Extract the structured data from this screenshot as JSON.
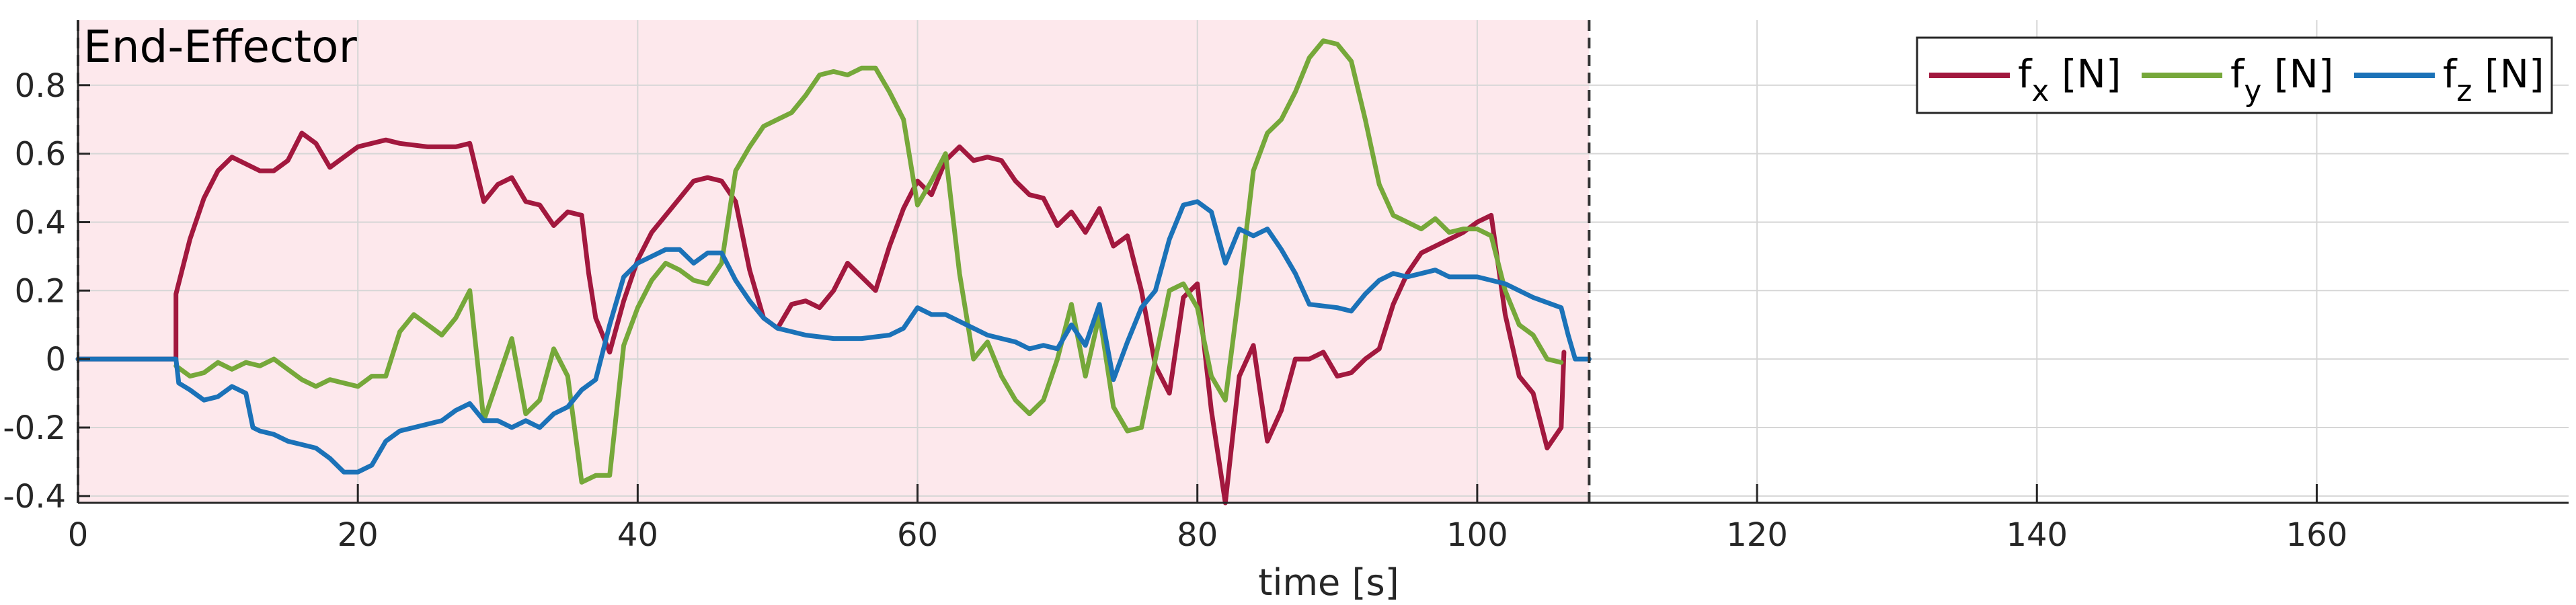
{
  "chart_data": {
    "type": "line",
    "title": "End-Effector",
    "xlabel": "time [s]",
    "ylabel": "",
    "xlim": [
      0,
      178
    ],
    "ylim": [
      -0.42,
      0.99
    ],
    "xticks": [
      0,
      20,
      40,
      60,
      80,
      100,
      120,
      140,
      160
    ],
    "yticks": [
      -0.4,
      -0.2,
      0,
      0.2,
      0.4,
      0.6,
      0.8
    ],
    "ytick_labels": [
      "-0.4",
      "-0.2",
      "0",
      "0.2",
      "0.4",
      "0.6",
      "0.8"
    ],
    "grid": true,
    "legend_position": "top-right",
    "shaded_region": {
      "x_start": 0,
      "x_end": 108,
      "color": "#fde8ec"
    },
    "vertical_markers": [
      0,
      108
    ],
    "series": [
      {
        "name": "f",
        "subscript": "x",
        "unit": "[N]",
        "color": "#a2183e",
        "points": [
          [
            0,
            0
          ],
          [
            7,
            0
          ],
          [
            7,
            0.19
          ],
          [
            8,
            0.35
          ],
          [
            9,
            0.47
          ],
          [
            10,
            0.55
          ],
          [
            11,
            0.59
          ],
          [
            12,
            0.57
          ],
          [
            13,
            0.55
          ],
          [
            14,
            0.55
          ],
          [
            15,
            0.58
          ],
          [
            16,
            0.66
          ],
          [
            17,
            0.63
          ],
          [
            18,
            0.56
          ],
          [
            19,
            0.59
          ],
          [
            20,
            0.62
          ],
          [
            22,
            0.64
          ],
          [
            23,
            0.63
          ],
          [
            25,
            0.62
          ],
          [
            27,
            0.62
          ],
          [
            28,
            0.63
          ],
          [
            29,
            0.46
          ],
          [
            30,
            0.51
          ],
          [
            31,
            0.53
          ],
          [
            32,
            0.46
          ],
          [
            33,
            0.45
          ],
          [
            34,
            0.39
          ],
          [
            35,
            0.43
          ],
          [
            36,
            0.42
          ],
          [
            36.5,
            0.25
          ],
          [
            37,
            0.12
          ],
          [
            38,
            0.02
          ],
          [
            39,
            0.17
          ],
          [
            40,
            0.29
          ],
          [
            41,
            0.37
          ],
          [
            42,
            0.42
          ],
          [
            43,
            0.47
          ],
          [
            44,
            0.52
          ],
          [
            45,
            0.53
          ],
          [
            46,
            0.52
          ],
          [
            47,
            0.46
          ],
          [
            48,
            0.26
          ],
          [
            49,
            0.12
          ],
          [
            50,
            0.09
          ],
          [
            51,
            0.16
          ],
          [
            52,
            0.17
          ],
          [
            53,
            0.15
          ],
          [
            54,
            0.2
          ],
          [
            55,
            0.28
          ],
          [
            56,
            0.24
          ],
          [
            57,
            0.2
          ],
          [
            58,
            0.33
          ],
          [
            59,
            0.44
          ],
          [
            60,
            0.52
          ],
          [
            61,
            0.48
          ],
          [
            62,
            0.58
          ],
          [
            63,
            0.62
          ],
          [
            64,
            0.58
          ],
          [
            65,
            0.59
          ],
          [
            66,
            0.58
          ],
          [
            67,
            0.52
          ],
          [
            68,
            0.48
          ],
          [
            69,
            0.47
          ],
          [
            70,
            0.39
          ],
          [
            71,
            0.43
          ],
          [
            72,
            0.37
          ],
          [
            73,
            0.44
          ],
          [
            74,
            0.33
          ],
          [
            75,
            0.36
          ],
          [
            76,
            0.2
          ],
          [
            77,
            -0.02
          ],
          [
            78,
            -0.1
          ],
          [
            79,
            0.18
          ],
          [
            80,
            0.22
          ],
          [
            81,
            -0.15
          ],
          [
            82,
            -0.42
          ],
          [
            83,
            -0.05
          ],
          [
            84,
            0.04
          ],
          [
            85,
            -0.24
          ],
          [
            86,
            -0.15
          ],
          [
            87,
            0.0
          ],
          [
            88,
            0.0
          ],
          [
            89,
            0.02
          ],
          [
            90,
            -0.05
          ],
          [
            91,
            -0.04
          ],
          [
            92,
            0.0
          ],
          [
            93,
            0.03
          ],
          [
            94,
            0.16
          ],
          [
            95,
            0.25
          ],
          [
            96,
            0.31
          ],
          [
            97,
            0.33
          ],
          [
            98,
            0.35
          ],
          [
            99,
            0.37
          ],
          [
            100,
            0.4
          ],
          [
            101,
            0.42
          ],
          [
            102,
            0.13
          ],
          [
            103,
            -0.05
          ],
          [
            104,
            -0.1
          ],
          [
            105,
            -0.26
          ],
          [
            106,
            -0.2
          ],
          [
            106.2,
            0.02
          ]
        ]
      },
      {
        "name": "f",
        "subscript": "y",
        "unit": "[N]",
        "color": "#76a83a",
        "points": [
          [
            7,
            -0.02
          ],
          [
            8,
            -0.05
          ],
          [
            9,
            -0.04
          ],
          [
            10,
            -0.01
          ],
          [
            11,
            -0.03
          ],
          [
            12,
            -0.01
          ],
          [
            13,
            -0.02
          ],
          [
            14,
            0.0
          ],
          [
            15,
            -0.03
          ],
          [
            16,
            -0.06
          ],
          [
            17,
            -0.08
          ],
          [
            18,
            -0.06
          ],
          [
            19,
            -0.07
          ],
          [
            20,
            -0.08
          ],
          [
            21,
            -0.05
          ],
          [
            22,
            -0.05
          ],
          [
            23,
            0.08
          ],
          [
            24,
            0.13
          ],
          [
            25,
            0.1
          ],
          [
            26,
            0.07
          ],
          [
            27,
            0.12
          ],
          [
            28,
            0.2
          ],
          [
            29,
            -0.18
          ],
          [
            30,
            -0.06
          ],
          [
            31,
            0.06
          ],
          [
            32,
            -0.16
          ],
          [
            33,
            -0.12
          ],
          [
            34,
            0.03
          ],
          [
            35,
            -0.05
          ],
          [
            36,
            -0.36
          ],
          [
            37,
            -0.34
          ],
          [
            38,
            -0.34
          ],
          [
            39,
            0.04
          ],
          [
            40,
            0.15
          ],
          [
            41,
            0.23
          ],
          [
            42,
            0.28
          ],
          [
            43,
            0.26
          ],
          [
            44,
            0.23
          ],
          [
            45,
            0.22
          ],
          [
            46,
            0.28
          ],
          [
            47,
            0.55
          ],
          [
            48,
            0.62
          ],
          [
            49,
            0.68
          ],
          [
            50,
            0.7
          ],
          [
            51,
            0.72
          ],
          [
            52,
            0.77
          ],
          [
            53,
            0.83
          ],
          [
            54,
            0.84
          ],
          [
            55,
            0.83
          ],
          [
            56,
            0.85
          ],
          [
            57,
            0.85
          ],
          [
            58,
            0.78
          ],
          [
            59,
            0.7
          ],
          [
            60,
            0.45
          ],
          [
            61,
            0.52
          ],
          [
            62,
            0.6
          ],
          [
            63,
            0.25
          ],
          [
            64,
            0.0
          ],
          [
            65,
            0.05
          ],
          [
            66,
            -0.05
          ],
          [
            67,
            -0.12
          ],
          [
            68,
            -0.16
          ],
          [
            69,
            -0.12
          ],
          [
            70,
            0.0
          ],
          [
            71,
            0.16
          ],
          [
            72,
            -0.05
          ],
          [
            73,
            0.13
          ],
          [
            74,
            -0.14
          ],
          [
            75,
            -0.21
          ],
          [
            76,
            -0.2
          ],
          [
            77,
            0.0
          ],
          [
            78,
            0.2
          ],
          [
            79,
            0.22
          ],
          [
            80,
            0.15
          ],
          [
            81,
            -0.05
          ],
          [
            82,
            -0.12
          ],
          [
            83,
            0.2
          ],
          [
            84,
            0.55
          ],
          [
            85,
            0.66
          ],
          [
            86,
            0.7
          ],
          [
            87,
            0.78
          ],
          [
            88,
            0.88
          ],
          [
            89,
            0.93
          ],
          [
            90,
            0.92
          ],
          [
            91,
            0.87
          ],
          [
            92,
            0.7
          ],
          [
            93,
            0.51
          ],
          [
            94,
            0.42
          ],
          [
            95,
            0.4
          ],
          [
            96,
            0.38
          ],
          [
            97,
            0.41
          ],
          [
            98,
            0.37
          ],
          [
            99,
            0.38
          ],
          [
            100,
            0.38
          ],
          [
            101,
            0.36
          ],
          [
            102,
            0.2
          ],
          [
            103,
            0.1
          ],
          [
            104,
            0.07
          ],
          [
            105,
            0.0
          ],
          [
            106,
            -0.01
          ]
        ]
      },
      {
        "name": "f",
        "subscript": "z",
        "unit": "[N]",
        "color": "#1b72b8",
        "points": [
          [
            0,
            0
          ],
          [
            7,
            0
          ],
          [
            7.2,
            -0.07
          ],
          [
            8,
            -0.09
          ],
          [
            9,
            -0.12
          ],
          [
            10,
            -0.11
          ],
          [
            11,
            -0.08
          ],
          [
            12,
            -0.1
          ],
          [
            12.5,
            -0.2
          ],
          [
            13,
            -0.21
          ],
          [
            14,
            -0.22
          ],
          [
            15,
            -0.24
          ],
          [
            16,
            -0.25
          ],
          [
            17,
            -0.26
          ],
          [
            18,
            -0.29
          ],
          [
            19,
            -0.33
          ],
          [
            20,
            -0.33
          ],
          [
            21,
            -0.31
          ],
          [
            22,
            -0.24
          ],
          [
            23,
            -0.21
          ],
          [
            24,
            -0.2
          ],
          [
            25,
            -0.19
          ],
          [
            26,
            -0.18
          ],
          [
            27,
            -0.15
          ],
          [
            28,
            -0.13
          ],
          [
            29,
            -0.18
          ],
          [
            30,
            -0.18
          ],
          [
            31,
            -0.2
          ],
          [
            32,
            -0.18
          ],
          [
            33,
            -0.2
          ],
          [
            34,
            -0.16
          ],
          [
            35,
            -0.14
          ],
          [
            36,
            -0.09
          ],
          [
            37,
            -0.06
          ],
          [
            38,
            0.1
          ],
          [
            39,
            0.24
          ],
          [
            40,
            0.28
          ],
          [
            41,
            0.3
          ],
          [
            42,
            0.32
          ],
          [
            43,
            0.32
          ],
          [
            44,
            0.28
          ],
          [
            45,
            0.31
          ],
          [
            46,
            0.31
          ],
          [
            47,
            0.23
          ],
          [
            48,
            0.17
          ],
          [
            49,
            0.12
          ],
          [
            50,
            0.09
          ],
          [
            51,
            0.08
          ],
          [
            52,
            0.07
          ],
          [
            54,
            0.06
          ],
          [
            56,
            0.06
          ],
          [
            58,
            0.07
          ],
          [
            59,
            0.09
          ],
          [
            60,
            0.15
          ],
          [
            61,
            0.13
          ],
          [
            62,
            0.13
          ],
          [
            63,
            0.11
          ],
          [
            64,
            0.09
          ],
          [
            65,
            0.07
          ],
          [
            66,
            0.06
          ],
          [
            67,
            0.05
          ],
          [
            68,
            0.03
          ],
          [
            69,
            0.04
          ],
          [
            70,
            0.03
          ],
          [
            71,
            0.1
          ],
          [
            72,
            0.04
          ],
          [
            73,
            0.16
          ],
          [
            74,
            -0.06
          ],
          [
            75,
            0.05
          ],
          [
            76,
            0.15
          ],
          [
            77,
            0.2
          ],
          [
            78,
            0.35
          ],
          [
            79,
            0.45
          ],
          [
            80,
            0.46
          ],
          [
            81,
            0.43
          ],
          [
            82,
            0.28
          ],
          [
            83,
            0.38
          ],
          [
            84,
            0.36
          ],
          [
            85,
            0.38
          ],
          [
            86,
            0.32
          ],
          [
            87,
            0.25
          ],
          [
            88,
            0.16
          ],
          [
            90,
            0.15
          ],
          [
            91,
            0.14
          ],
          [
            92,
            0.19
          ],
          [
            93,
            0.23
          ],
          [
            94,
            0.25
          ],
          [
            95,
            0.24
          ],
          [
            96,
            0.25
          ],
          [
            97,
            0.26
          ],
          [
            98,
            0.24
          ],
          [
            100,
            0.24
          ],
          [
            102,
            0.22
          ],
          [
            104,
            0.18
          ],
          [
            106,
            0.15
          ],
          [
            106.5,
            0.07
          ],
          [
            107,
            0.0
          ],
          [
            108,
            0.0
          ]
        ]
      }
    ]
  }
}
